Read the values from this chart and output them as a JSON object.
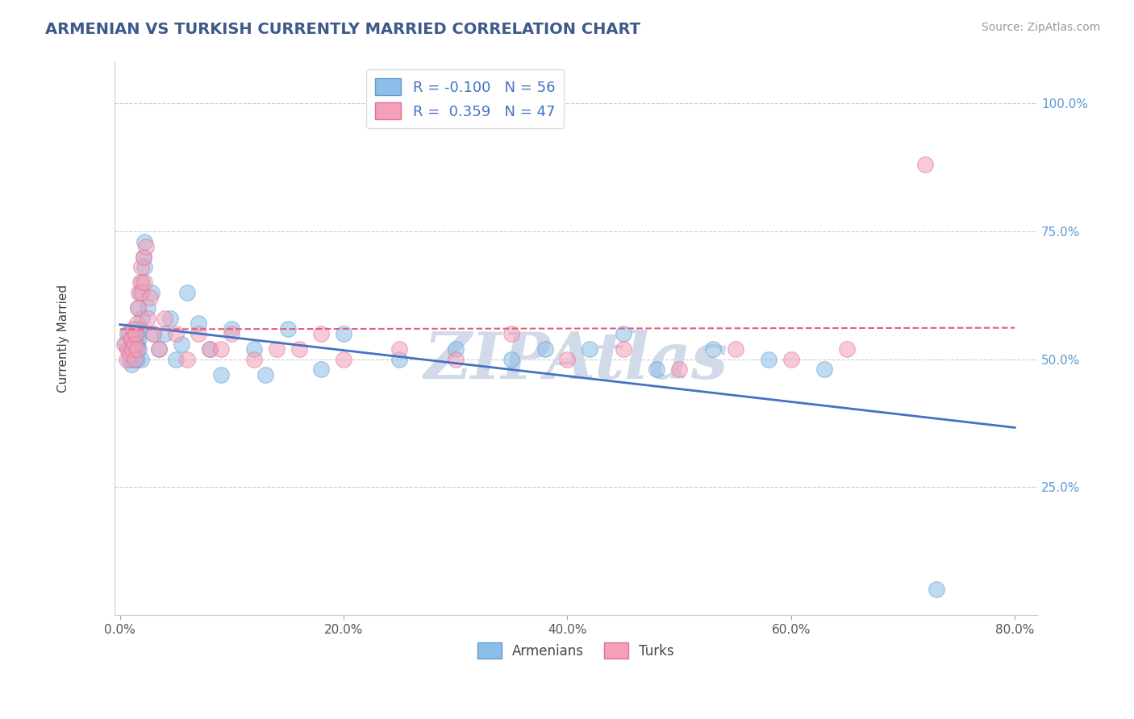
{
  "title": "ARMENIAN VS TURKISH CURRENTLY MARRIED CORRELATION CHART",
  "source_text": "Source: ZipAtlas.com",
  "ylabel": "Currently Married",
  "xlim": [
    -0.005,
    0.82
  ],
  "ylim": [
    0.0,
    1.08
  ],
  "xticks": [
    0.0,
    0.2,
    0.4,
    0.6,
    0.8
  ],
  "xticklabels": [
    "0.0%",
    "20.0%",
    "40.0%",
    "60.0%",
    "80.0%"
  ],
  "yticks": [
    0.25,
    0.5,
    0.75,
    1.0
  ],
  "yticklabels": [
    "25.0%",
    "50.0%",
    "75.0%",
    "100.0%"
  ],
  "armenian_color": "#8bbee8",
  "turkish_color": "#f4a0b8",
  "armenian_edge_color": "#6699cc",
  "turkish_edge_color": "#e07090",
  "armenian_trend_color": "#4472c4",
  "turkish_trend_color": "#e06080",
  "title_color": "#3d5a8a",
  "source_color": "#999999",
  "watermark_color": "#d0dae8",
  "tick_color": "#5b9bd5",
  "legend_R1": "-0.100",
  "legend_N1": "56",
  "legend_R2": "0.359",
  "legend_N2": "47",
  "legend_label1": "Armenians",
  "legend_label2": "Turks",
  "figsize": [
    14.06,
    8.92
  ],
  "dpi": 100,
  "arm_x": [
    0.005,
    0.007,
    0.008,
    0.009,
    0.01,
    0.01,
    0.011,
    0.012,
    0.012,
    0.013,
    0.013,
    0.014,
    0.014,
    0.015,
    0.015,
    0.016,
    0.016,
    0.017,
    0.017,
    0.018,
    0.018,
    0.019,
    0.02,
    0.02,
    0.021,
    0.022,
    0.022,
    0.025,
    0.028,
    0.03,
    0.035,
    0.04,
    0.045,
    0.05,
    0.055,
    0.06,
    0.07,
    0.08,
    0.09,
    0.1,
    0.12,
    0.13,
    0.15,
    0.18,
    0.2,
    0.25,
    0.3,
    0.35,
    0.38,
    0.42,
    0.45,
    0.48,
    0.53,
    0.58,
    0.63,
    0.73
  ],
  "arm_y": [
    0.53,
    0.55,
    0.5,
    0.52,
    0.49,
    0.54,
    0.53,
    0.51,
    0.55,
    0.5,
    0.54,
    0.52,
    0.56,
    0.53,
    0.5,
    0.55,
    0.6,
    0.52,
    0.54,
    0.56,
    0.63,
    0.5,
    0.65,
    0.58,
    0.7,
    0.68,
    0.73,
    0.6,
    0.63,
    0.55,
    0.52,
    0.55,
    0.58,
    0.5,
    0.53,
    0.63,
    0.57,
    0.52,
    0.47,
    0.56,
    0.52,
    0.47,
    0.56,
    0.48,
    0.55,
    0.5,
    0.52,
    0.5,
    0.52,
    0.52,
    0.55,
    0.48,
    0.52,
    0.5,
    0.48,
    0.05
  ],
  "turk_x": [
    0.004,
    0.006,
    0.007,
    0.008,
    0.009,
    0.01,
    0.011,
    0.012,
    0.013,
    0.013,
    0.014,
    0.015,
    0.015,
    0.016,
    0.017,
    0.018,
    0.019,
    0.02,
    0.021,
    0.022,
    0.023,
    0.025,
    0.027,
    0.03,
    0.035,
    0.04,
    0.05,
    0.06,
    0.07,
    0.08,
    0.09,
    0.1,
    0.12,
    0.14,
    0.16,
    0.18,
    0.2,
    0.25,
    0.3,
    0.35,
    0.4,
    0.45,
    0.5,
    0.55,
    0.6,
    0.65,
    0.72
  ],
  "turk_y": [
    0.53,
    0.5,
    0.52,
    0.55,
    0.51,
    0.54,
    0.52,
    0.56,
    0.5,
    0.53,
    0.55,
    0.52,
    0.57,
    0.6,
    0.63,
    0.65,
    0.68,
    0.63,
    0.7,
    0.65,
    0.72,
    0.58,
    0.62,
    0.55,
    0.52,
    0.58,
    0.55,
    0.5,
    0.55,
    0.52,
    0.52,
    0.55,
    0.5,
    0.52,
    0.52,
    0.55,
    0.5,
    0.52,
    0.5,
    0.55,
    0.5,
    0.52,
    0.48,
    0.52,
    0.5,
    0.52,
    0.88
  ]
}
